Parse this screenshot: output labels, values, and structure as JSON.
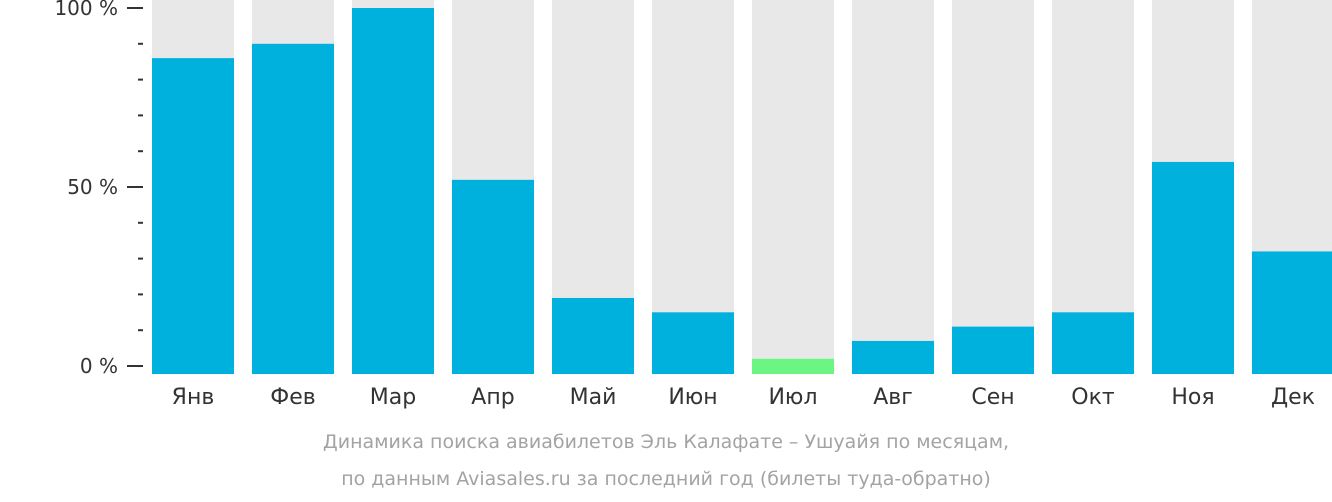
{
  "chart_data": {
    "type": "bar",
    "categories": [
      "Янв",
      "Фев",
      "Мар",
      "Апр",
      "Май",
      "Июн",
      "Июл",
      "Авг",
      "Сен",
      "Окт",
      "Ноя",
      "Дек"
    ],
    "values": [
      86,
      90,
      100,
      52,
      19,
      15,
      2,
      7,
      11,
      15,
      57,
      32
    ],
    "ylim": [
      0,
      100
    ],
    "y_tick_labels": [
      "0 %",
      "50 %",
      "100 %"
    ],
    "y_tick_values": [
      0,
      50,
      100
    ],
    "y_minor_tick_step": 10,
    "highlight_index": 6,
    "colors": {
      "bar": "#00b1dd",
      "bar_highlight": "#6bf582",
      "track": "#e8e8e8",
      "axis_text": "#333333",
      "caption": "#a3a3a3"
    }
  },
  "caption": {
    "line1": "Динамика поиска авиабилетов Эль Калафате – Ушуайя по месяцам,",
    "line2": "по данным Aviasales.ru за последний год (билеты туда-обратно)"
  }
}
